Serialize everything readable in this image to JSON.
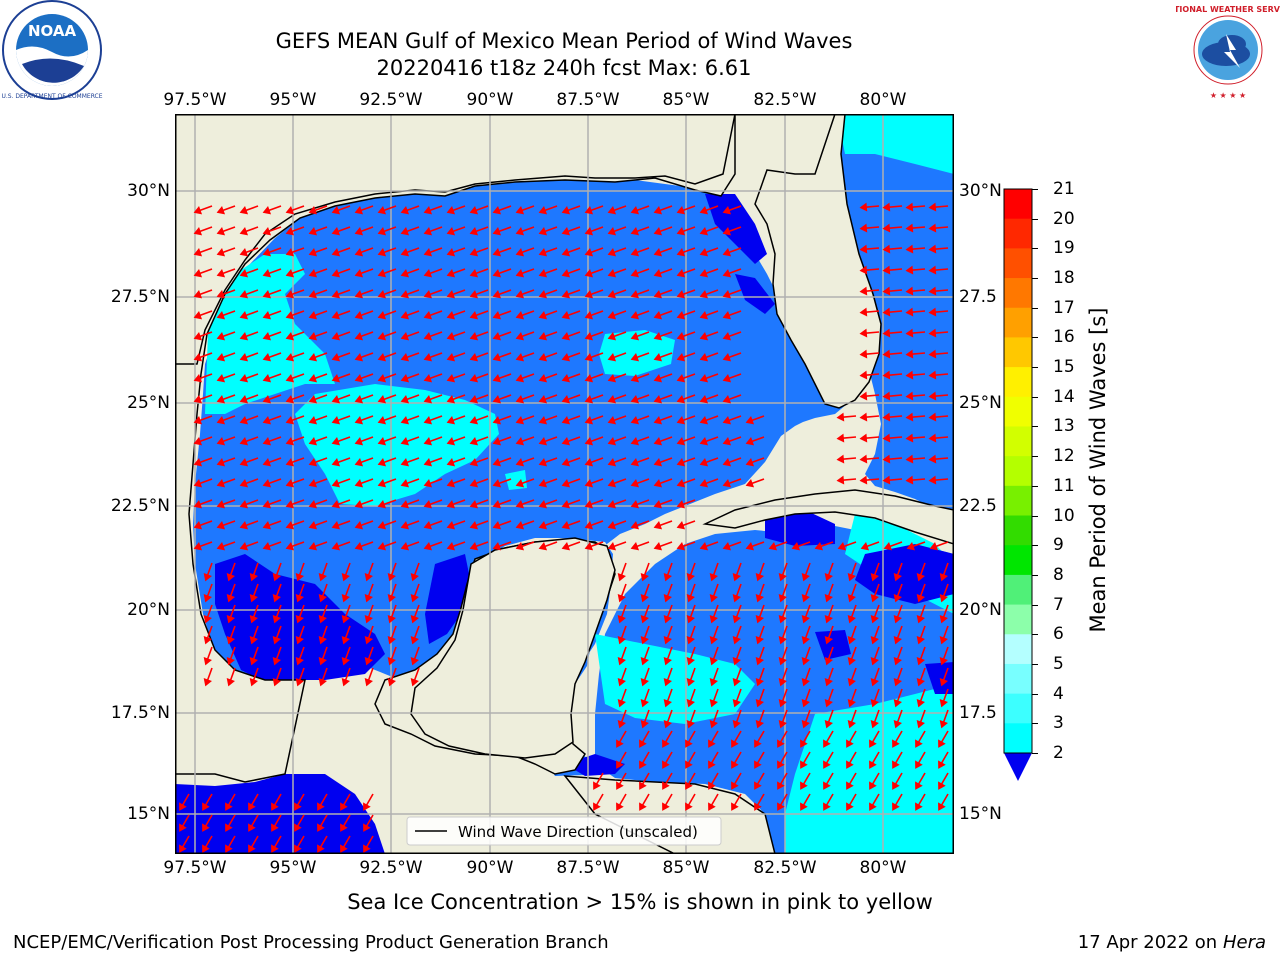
{
  "header": {
    "title_line1": "GEFS MEAN Gulf of Mexico Mean Period of Wind Waves",
    "title_line2": "20220416 t18z 240h fcst   Max: 6.61"
  },
  "logos": {
    "left": {
      "icon": "noaa-logo-icon",
      "text": "NOAA"
    },
    "right": {
      "icon": "nws-logo-icon",
      "text": "NATIONAL WEATHER SERVICE"
    }
  },
  "map": {
    "lon_labels": [
      "97.5°W",
      "95°W",
      "92.5°W",
      "90°W",
      "87.5°W",
      "85°W",
      "82.5°W",
      "80°W"
    ],
    "lat_labels": [
      "30°N",
      "27.5°N",
      "25°N",
      "22.5°N",
      "20°N",
      "17.5°N",
      "15°N"
    ],
    "lat_labels_right": [
      "30°N",
      "27.5",
      "25°N",
      "22.5",
      "20°N",
      "17.5",
      "15°N"
    ],
    "legend_label": "Wind Wave Direction (unscaled)",
    "colors": {
      "land": "#eeeedc",
      "ocean_2_4": "#1e78ff",
      "ocean_4_6": "#00ffff",
      "ocean_below_2": "#0000f0",
      "arrow": "#ff0000"
    }
  },
  "colorbar": {
    "label": "Mean Period of Wind Waves [s]",
    "ticks": [
      "21",
      "20",
      "19",
      "18",
      "17",
      "16",
      "15",
      "14",
      "13",
      "12",
      "11",
      "10",
      "9",
      "8",
      "7",
      "6",
      "5",
      "4",
      "3",
      "2"
    ],
    "colors": [
      "#ff0000",
      "#ff2800",
      "#ff5000",
      "#ff7800",
      "#ffa000",
      "#ffc800",
      "#fff000",
      "#f0ff00",
      "#d2ff00",
      "#b4ff00",
      "#78f000",
      "#32dc00",
      "#00e600",
      "#50f078",
      "#8cffaa",
      "#b4ffff",
      "#78ffff",
      "#3cffff",
      "#00ffff",
      "#1e78ff"
    ],
    "extend_color": "#0000f0"
  },
  "footer": {
    "note": "Sea Ice Concentration > 15% is shown in pink to yellow",
    "org": "NCEP/EMC/Verification Post Processing Product Generation Branch",
    "date": "17 Apr 2022 on ",
    "machine": "Hera"
  }
}
